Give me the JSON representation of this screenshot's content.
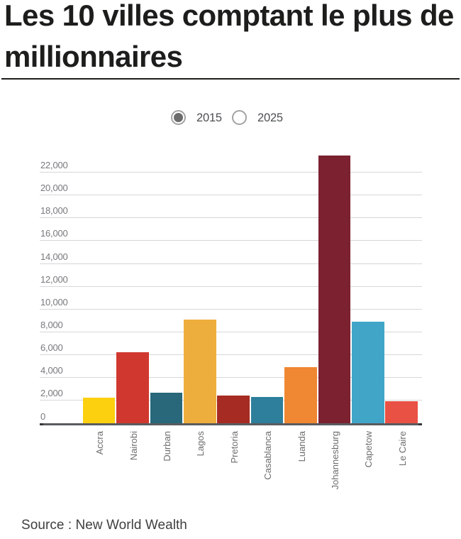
{
  "title": {
    "line1": "Les 10 villes comptant le plus de",
    "line2": "millionnaires",
    "full": "Les 10 villes comptant le plus de millionnaires"
  },
  "year_selector": {
    "options": [
      {
        "label": "2015",
        "selected": true
      },
      {
        "label": "2025",
        "selected": false
      }
    ]
  },
  "source": {
    "text": "Source : New World Wealth"
  },
  "chart_data": {
    "type": "bar",
    "title": "Les 10 villes comptant le plus de millionnaires",
    "selected_series": "2015",
    "categories": [
      "Accra",
      "Nairobi",
      "Durban",
      "Lagos",
      "Pretoria",
      "Casablanca",
      "Luanda",
      "Johannesburg",
      "Capetow",
      "Le Caire"
    ],
    "values": [
      2250,
      6200,
      2650,
      9100,
      2450,
      2300,
      4900,
      23450,
      8900,
      1950
    ],
    "bar_colors": [
      "#fdd00f",
      "#d0382f",
      "#28687a",
      "#eeae3d",
      "#a62b22",
      "#2e7f9c",
      "#f08732",
      "#7b2130",
      "#41a5c8",
      "#e95144"
    ],
    "yticks": [
      0,
      2000,
      4000,
      6000,
      8000,
      10000,
      12000,
      14000,
      16000,
      18000,
      20000,
      22000
    ],
    "ytick_labels": [
      "0",
      "2,000",
      "4,000",
      "6,000",
      "8,000",
      "10,000",
      "12,000",
      "14,000",
      "16,000",
      "18,000",
      "20,000",
      "22,000"
    ],
    "ylim": [
      0,
      23600
    ],
    "xlabel": "",
    "ylabel": "",
    "grid": true,
    "legend_position": "none",
    "source": "New World Wealth"
  }
}
